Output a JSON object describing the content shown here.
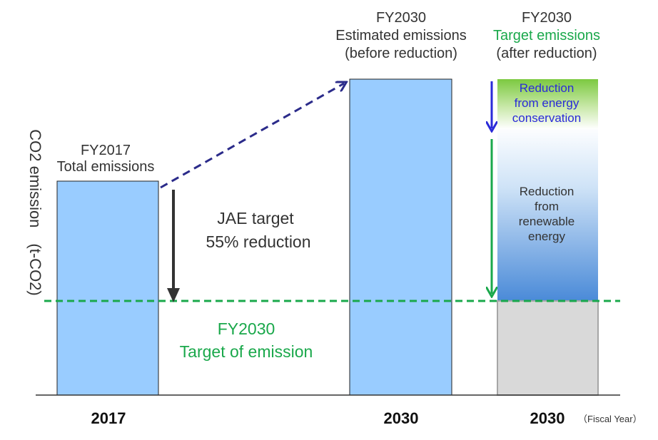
{
  "y_axis_label": "CO2 emission　(t-CO2)",
  "x_axis_unit": "（Fiscal Year）",
  "colors": {
    "bar_fill": "#99ccff",
    "target_line": "#1aa84b",
    "energy_conservation_text": "#2a2ad8",
    "renewable_gradient_bottom": "#4a8ad8",
    "base_fill": "#d9d9d9"
  },
  "bars": {
    "fy2017": {
      "tick": "2017",
      "label_line1": "FY2017",
      "label_line2": "Total emissions"
    },
    "fy2030_estimated": {
      "tick": "2030",
      "label_line1": "FY2030",
      "label_line2": "Estimated emissions",
      "label_line3": "(before reduction)"
    },
    "fy2030_target": {
      "tick": "2030",
      "label_line1": "FY2030",
      "label_line2": "Target emissions",
      "label_line3": "(after reduction)"
    }
  },
  "jae_target": {
    "line1": "JAE target",
    "line2": "55% reduction"
  },
  "target_of_emission": {
    "line1": "FY2030",
    "line2": "Target of emission"
  },
  "energy_conservation": {
    "line1": "Reduction",
    "line2": "from energy",
    "line3": "conservation"
  },
  "renewable_energy": {
    "line1": "Reduction",
    "line2": "from",
    "line3": "renewable",
    "line4": "energy"
  }
}
